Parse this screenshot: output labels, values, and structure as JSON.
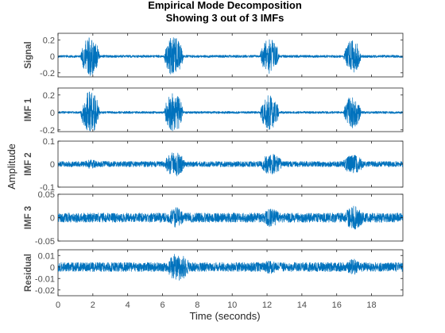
{
  "figure": {
    "title_line1": "Empirical Mode Decomposition",
    "title_line2": "Showing 3 out of 3 IMFs",
    "xlabel": "Time (seconds)",
    "ylabel": "Amplitude",
    "line_color": "#0072bd",
    "axis_color": "#262626",
    "tick_label_color": "#4d4d4d"
  },
  "chart_data": [
    {
      "type": "line",
      "panel_label": "Signal",
      "xlim": [
        0,
        19.8
      ],
      "ylim": [
        -0.25,
        0.28
      ],
      "xticks": [
        0,
        2,
        4,
        6,
        8,
        10,
        12,
        14,
        16,
        18
      ],
      "yticks": [
        -0.2,
        0,
        0.2
      ],
      "ytick_labels": [
        "-0.2",
        "0",
        "0.2"
      ],
      "noise_amplitude": 0.015,
      "segments": [
        {
          "t_start": 1.3,
          "t_end": 2.4,
          "peak_amplitude": 0.24
        },
        {
          "t_start": 6.1,
          "t_end": 7.2,
          "peak_amplitude": 0.24
        },
        {
          "t_start": 11.6,
          "t_end": 12.7,
          "peak_amplitude": 0.21
        },
        {
          "t_start": 16.4,
          "t_end": 17.4,
          "peak_amplitude": 0.2
        }
      ]
    },
    {
      "type": "line",
      "panel_label": "IMF 1",
      "xlim": [
        0,
        19.8
      ],
      "ylim": [
        -0.22,
        0.28
      ],
      "xticks": [
        0,
        2,
        4,
        6,
        8,
        10,
        12,
        14,
        16,
        18
      ],
      "yticks": [
        -0.2,
        0,
        0.2
      ],
      "ytick_labels": [
        "-0.2",
        "0",
        "0.2"
      ],
      "noise_amplitude": 0.013,
      "segments": [
        {
          "t_start": 1.3,
          "t_end": 2.4,
          "peak_amplitude": 0.24
        },
        {
          "t_start": 6.1,
          "t_end": 7.2,
          "peak_amplitude": 0.23
        },
        {
          "t_start": 11.6,
          "t_end": 12.7,
          "peak_amplitude": 0.2
        },
        {
          "t_start": 16.4,
          "t_end": 17.4,
          "peak_amplitude": 0.19
        }
      ]
    },
    {
      "type": "line",
      "panel_label": "IMF 2",
      "xlim": [
        0,
        19.8
      ],
      "ylim": [
        -0.1,
        0.1
      ],
      "xticks": [
        0,
        2,
        4,
        6,
        8,
        10,
        12,
        14,
        16,
        18
      ],
      "yticks": [
        -0.1,
        0,
        0.1
      ],
      "ytick_labels": [
        "-0.1",
        "0",
        "0.1"
      ],
      "noise_amplitude": 0.012,
      "segments": [
        {
          "t_start": 1.4,
          "t_end": 2.4,
          "peak_amplitude": 0.02
        },
        {
          "t_start": 6.1,
          "t_end": 7.3,
          "peak_amplitude": 0.055
        },
        {
          "t_start": 11.6,
          "t_end": 12.9,
          "peak_amplitude": 0.045
        },
        {
          "t_start": 16.3,
          "t_end": 17.6,
          "peak_amplitude": 0.04
        }
      ]
    },
    {
      "type": "line",
      "panel_label": "IMF 3",
      "xlim": [
        0,
        19.8
      ],
      "ylim": [
        -0.05,
        0.05
      ],
      "xticks": [
        0,
        2,
        4,
        6,
        8,
        10,
        12,
        14,
        16,
        18
      ],
      "yticks": [
        -0.05,
        0,
        0.05
      ],
      "ytick_labels": [
        "-0.05",
        "0",
        "0.05"
      ],
      "noise_amplitude": 0.01,
      "segments": [
        {
          "t_start": 6.3,
          "t_end": 7.3,
          "peak_amplitude": 0.022
        },
        {
          "t_start": 11.7,
          "t_end": 12.8,
          "peak_amplitude": 0.02
        },
        {
          "t_start": 16.4,
          "t_end": 17.6,
          "peak_amplitude": 0.025
        }
      ]
    },
    {
      "type": "line",
      "panel_label": "Residual",
      "xlim": [
        0,
        19.8
      ],
      "ylim": [
        -0.025,
        0.015
      ],
      "xticks": [
        0,
        2,
        4,
        6,
        8,
        10,
        12,
        14,
        16,
        18
      ],
      "yticks": [
        -0.02,
        -0.01,
        0,
        0.01
      ],
      "ytick_labels": [
        "-0.02",
        "-0.01",
        "0",
        "0.01"
      ],
      "xtick_labels": [
        "0",
        "2",
        "4",
        "6",
        "8",
        "10",
        "12",
        "14",
        "16",
        "18"
      ],
      "noise_amplitude": 0.004,
      "segments": [
        {
          "t_start": 6.2,
          "t_end": 7.6,
          "peak_amplitude": 0.012
        },
        {
          "t_start": 11.7,
          "t_end": 12.7,
          "peak_amplitude": 0.006
        },
        {
          "t_start": 16.5,
          "t_end": 17.4,
          "peak_amplitude": 0.007
        }
      ]
    }
  ]
}
